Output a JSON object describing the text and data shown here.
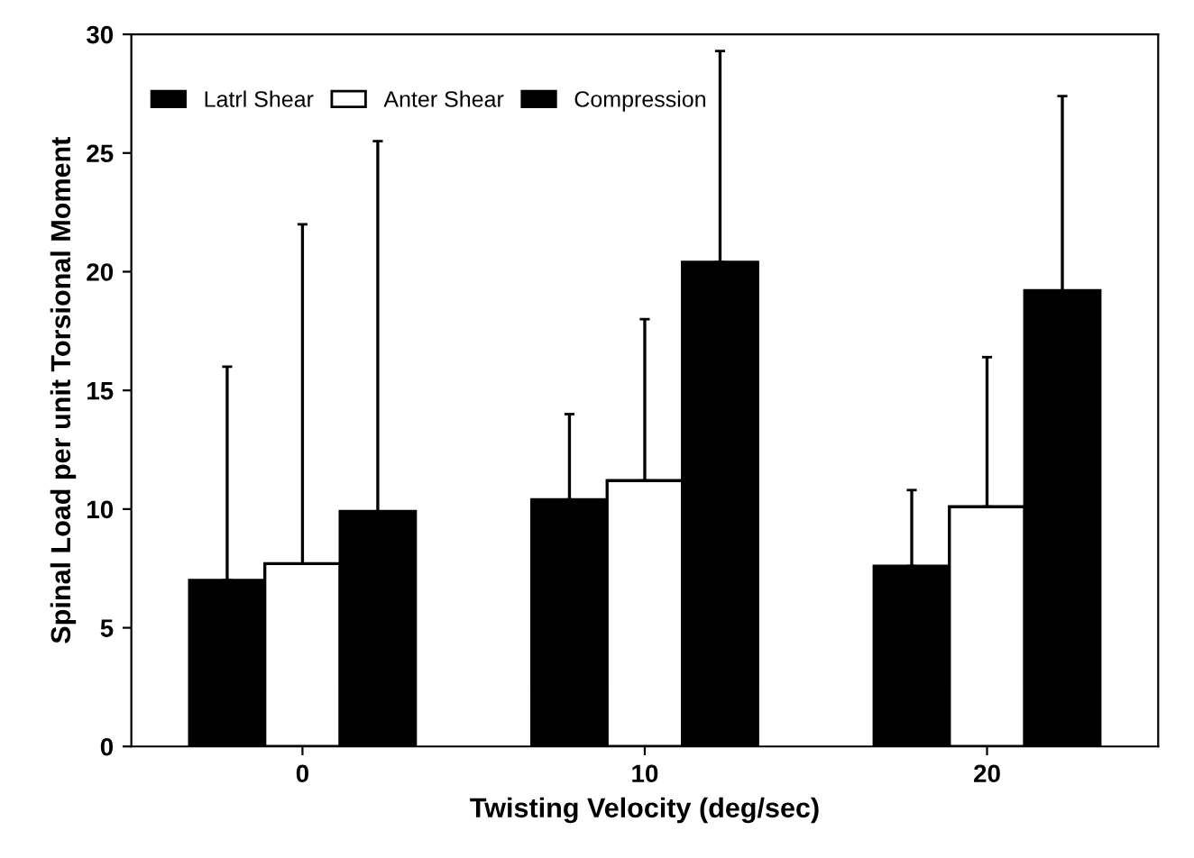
{
  "chart_data": {
    "type": "bar",
    "xlabel": "Twisting Velocity (deg/sec)",
    "ylabel": "Spinal Load per unit Torsional Moment",
    "categories": [
      "0",
      "10",
      "20"
    ],
    "series": [
      {
        "name": "Latrl Shear",
        "color": "#000000",
        "values": [
          7,
          10.4,
          7.6
        ],
        "errors": [
          [
            7,
            16
          ],
          [
            10.4,
            14
          ],
          [
            7.6,
            10.8
          ]
        ]
      },
      {
        "name": "Anter Shear",
        "color": "#ffffff",
        "values": [
          7.7,
          11.2,
          10.1
        ],
        "errors": [
          [
            7.7,
            22
          ],
          [
            11.2,
            18
          ],
          [
            10.1,
            16.4
          ]
        ]
      },
      {
        "name": "Compression",
        "color": "#000000",
        "values": [
          9.9,
          20.4,
          19.2
        ],
        "errors": [
          [
            9.9,
            25.5
          ],
          [
            20.4,
            29.3
          ],
          [
            19.2,
            27.4
          ]
        ]
      }
    ],
    "ylim": [
      0,
      30
    ],
    "yticks": [
      0,
      5,
      10,
      15,
      20,
      25,
      30
    ],
    "grid": false,
    "legend": "top"
  }
}
